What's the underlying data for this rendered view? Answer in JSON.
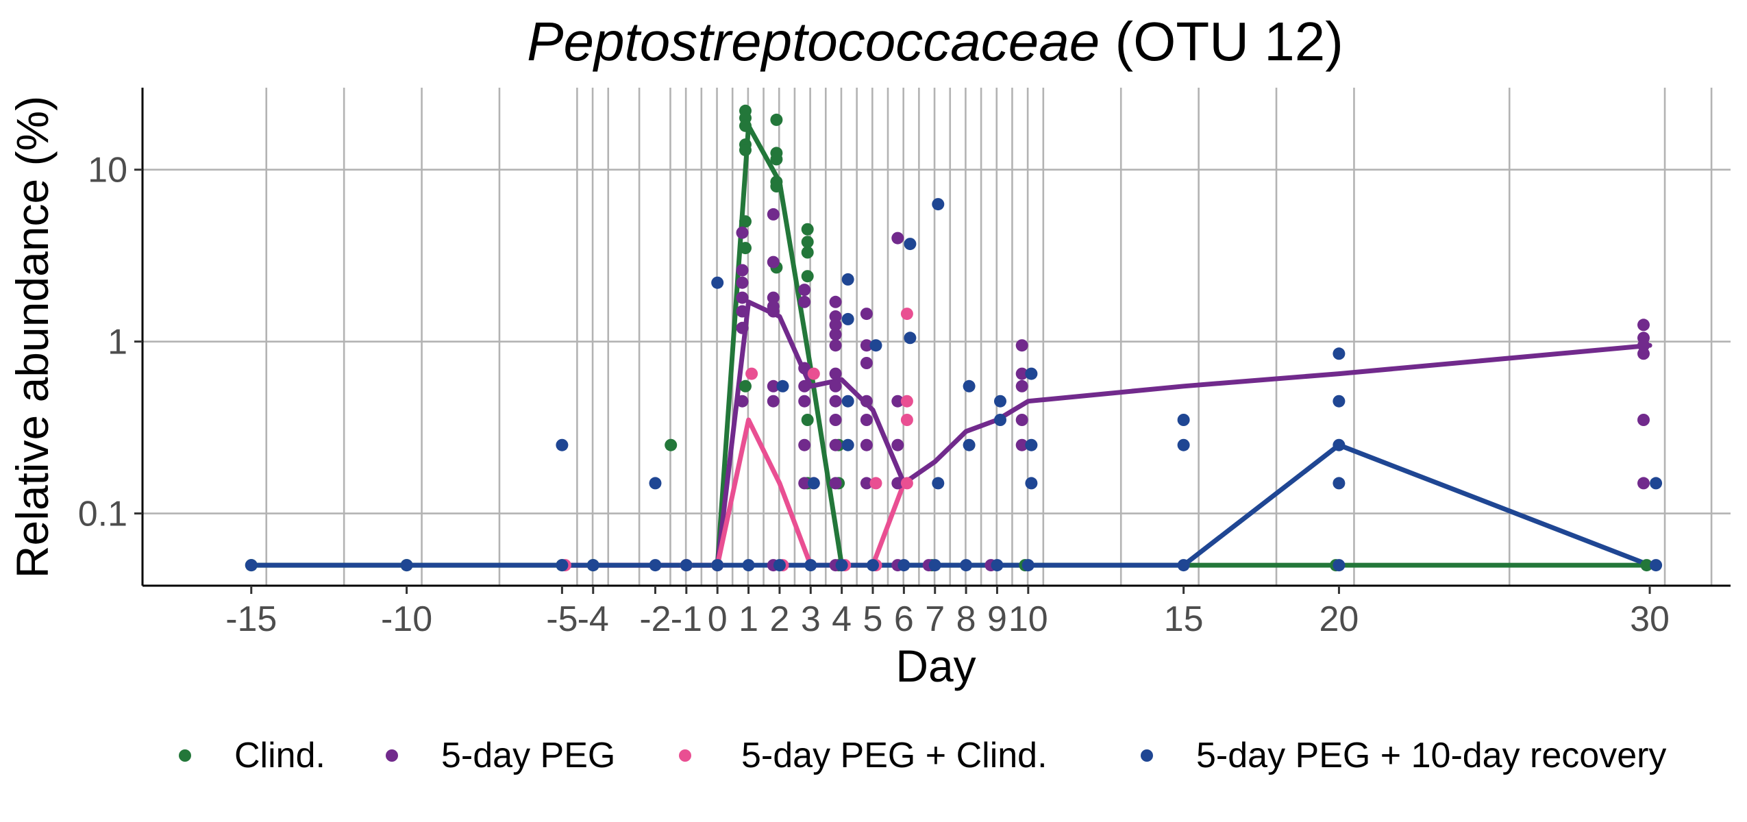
{
  "chart_data": {
    "type": "line",
    "title_main": "Peptostreptococcaceae",
    "title_rest": " (OTU 12)",
    "xlabel": "Day",
    "ylabel": "Relative abundance (%)",
    "y_scale": "log10",
    "ylim": [
      0.038,
      30
    ],
    "xlim": [
      -18.5,
      32.6
    ],
    "grid": "on",
    "legend_position": "bottom",
    "x_ticks": [
      {
        "value": -15,
        "label": "-15"
      },
      {
        "value": -10,
        "label": "-10"
      },
      {
        "value": -5,
        "label": "-5"
      },
      {
        "value": -4,
        "label": "-4"
      },
      {
        "value": -2,
        "label": "-2"
      },
      {
        "value": -1,
        "label": "-1"
      },
      {
        "value": 0,
        "label": "0"
      },
      {
        "value": 1,
        "label": "1"
      },
      {
        "value": 2,
        "label": "2"
      },
      {
        "value": 3,
        "label": "3"
      },
      {
        "value": 4,
        "label": "4"
      },
      {
        "value": 5,
        "label": "5"
      },
      {
        "value": 6,
        "label": "6"
      },
      {
        "value": 7,
        "label": "7"
      },
      {
        "value": 8,
        "label": "8"
      },
      {
        "value": 9,
        "label": "9"
      },
      {
        "value": 10,
        "label": "10"
      },
      {
        "value": 15,
        "label": "15"
      },
      {
        "value": 20,
        "label": "20"
      },
      {
        "value": 30,
        "label": "30"
      }
    ],
    "y_ticks": [
      {
        "value": 0.1,
        "label": "0.1"
      },
      {
        "value": 1,
        "label": "1"
      },
      {
        "value": 10,
        "label": "10"
      }
    ],
    "series": [
      {
        "name": "Clind.",
        "color": "#23773a",
        "line": [
          [
            -15,
            0.05
          ],
          [
            -10,
            0.05
          ],
          [
            -5,
            0.05
          ],
          [
            -1,
            0.05
          ],
          [
            0,
            0.05
          ],
          [
            1,
            18
          ],
          [
            2,
            8.5
          ],
          [
            3,
            0.7
          ],
          [
            4,
            0.05
          ],
          [
            10,
            0.05
          ],
          [
            15,
            0.05
          ],
          [
            20,
            0.05
          ],
          [
            30,
            0.05
          ]
        ],
        "points": [
          [
            -15,
            0.05
          ],
          [
            -10,
            0.05
          ],
          [
            -5,
            0.05
          ],
          [
            -4,
            0.05
          ],
          [
            -1,
            0.05
          ],
          [
            0,
            0.05
          ],
          [
            -1.5,
            0.25
          ],
          [
            0.9,
            22
          ],
          [
            0.9,
            20
          ],
          [
            0.9,
            18
          ],
          [
            0.9,
            14
          ],
          [
            0.9,
            13
          ],
          [
            0.9,
            5
          ],
          [
            0.9,
            3.5
          ],
          [
            0.9,
            0.55
          ],
          [
            1.9,
            19.5
          ],
          [
            1.9,
            12.5
          ],
          [
            1.9,
            11.5
          ],
          [
            1.9,
            8.5
          ],
          [
            1.9,
            8
          ],
          [
            1.9,
            2.7
          ],
          [
            2.9,
            4.5
          ],
          [
            2.9,
            3.8
          ],
          [
            2.9,
            3.3
          ],
          [
            2.9,
            2.4
          ],
          [
            2.9,
            0.35
          ],
          [
            2.9,
            0.15
          ],
          [
            3.9,
            0.25
          ],
          [
            3.9,
            0.15
          ],
          [
            3.9,
            0.05
          ],
          [
            6.9,
            0.05
          ],
          [
            9.9,
            0.05
          ],
          [
            19.9,
            0.05
          ],
          [
            29.9,
            0.05
          ]
        ]
      },
      {
        "name": "5-day PEG",
        "color": "#712a8c",
        "line": [
          [
            -5,
            0.05
          ],
          [
            -4,
            0.05
          ],
          [
            -2,
            0.05
          ],
          [
            -1,
            0.05
          ],
          [
            0,
            0.05
          ],
          [
            1,
            1.7
          ],
          [
            2,
            1.4
          ],
          [
            3,
            0.55
          ],
          [
            4,
            0.6
          ],
          [
            5,
            0.4
          ],
          [
            6,
            0.15
          ],
          [
            7,
            0.2
          ],
          [
            8,
            0.3
          ],
          [
            9,
            0.35
          ],
          [
            10,
            0.45
          ],
          [
            15,
            0.55
          ],
          [
            20,
            0.65
          ],
          [
            30,
            0.95
          ]
        ],
        "points": [
          [
            0.8,
            4.3
          ],
          [
            0.8,
            2.6
          ],
          [
            0.8,
            2.2
          ],
          [
            0.8,
            1.8
          ],
          [
            0.8,
            1.5
          ],
          [
            0.8,
            1.2
          ],
          [
            0.8,
            0.45
          ],
          [
            1.8,
            5.5
          ],
          [
            1.8,
            2.9
          ],
          [
            1.8,
            1.8
          ],
          [
            1.8,
            1.6
          ],
          [
            1.8,
            1.5
          ],
          [
            1.8,
            0.55
          ],
          [
            1.8,
            0.45
          ],
          [
            2.8,
            2.0
          ],
          [
            2.8,
            1.7
          ],
          [
            2.8,
            0.7
          ],
          [
            2.8,
            0.55
          ],
          [
            2.8,
            0.45
          ],
          [
            2.8,
            0.25
          ],
          [
            2.8,
            0.15
          ],
          [
            3.8,
            1.7
          ],
          [
            3.8,
            1.4
          ],
          [
            3.8,
            1.25
          ],
          [
            3.8,
            1.1
          ],
          [
            3.8,
            0.95
          ],
          [
            3.8,
            0.65
          ],
          [
            3.8,
            0.55
          ],
          [
            3.8,
            0.45
          ],
          [
            3.8,
            0.35
          ],
          [
            3.8,
            0.25
          ],
          [
            3.8,
            0.15
          ],
          [
            4.8,
            1.45
          ],
          [
            4.8,
            0.95
          ],
          [
            4.8,
            0.75
          ],
          [
            4.8,
            0.45
          ],
          [
            4.8,
            0.35
          ],
          [
            4.8,
            0.25
          ],
          [
            4.8,
            0.15
          ],
          [
            5.8,
            4.0
          ],
          [
            5.8,
            0.45
          ],
          [
            5.8,
            0.25
          ],
          [
            5.8,
            0.15
          ],
          [
            9.8,
            0.95
          ],
          [
            9.8,
            0.65
          ],
          [
            9.8,
            0.55
          ],
          [
            9.8,
            0.35
          ],
          [
            9.8,
            0.25
          ],
          [
            29.8,
            1.25
          ],
          [
            29.8,
            1.05
          ],
          [
            29.8,
            0.95
          ],
          [
            29.8,
            0.85
          ],
          [
            29.8,
            0.35
          ],
          [
            29.8,
            0.15
          ],
          [
            1.8,
            0.05
          ],
          [
            3.8,
            0.05
          ],
          [
            5.8,
            0.05
          ],
          [
            6.8,
            0.05
          ],
          [
            8.8,
            0.05
          ]
        ]
      },
      {
        "name": "5-day PEG + Clind.",
        "color": "#e94f92",
        "line": [
          [
            -5,
            0.05
          ],
          [
            -4,
            0.05
          ],
          [
            -2,
            0.05
          ],
          [
            -1,
            0.05
          ],
          [
            0,
            0.05
          ],
          [
            1,
            0.35
          ],
          [
            2,
            0.15
          ],
          [
            3,
            0.05
          ],
          [
            4,
            0.05
          ],
          [
            5,
            0.05
          ],
          [
            6,
            0.15
          ]
        ],
        "points": [
          [
            1.1,
            0.65
          ],
          [
            3.1,
            0.65
          ],
          [
            3.1,
            0.15
          ],
          [
            5.1,
            0.15
          ],
          [
            6.1,
            1.45
          ],
          [
            6.1,
            0.45
          ],
          [
            6.1,
            0.35
          ],
          [
            6.1,
            0.15
          ],
          [
            -4.9,
            0.05
          ],
          [
            -1,
            0.05
          ],
          [
            0,
            0.05
          ],
          [
            2.1,
            0.05
          ],
          [
            4.1,
            0.05
          ],
          [
            5.1,
            0.05
          ]
        ]
      },
      {
        "name": "5-day PEG + 10-day recovery",
        "color": "#1f4693",
        "line": [
          [
            -15,
            0.05
          ],
          [
            -10,
            0.05
          ],
          [
            -5,
            0.05
          ],
          [
            -4,
            0.05
          ],
          [
            -2,
            0.05
          ],
          [
            -1,
            0.05
          ],
          [
            0,
            0.05
          ],
          [
            1,
            0.05
          ],
          [
            2,
            0.05
          ],
          [
            3,
            0.05
          ],
          [
            4,
            0.05
          ],
          [
            5,
            0.05
          ],
          [
            6,
            0.05
          ],
          [
            7,
            0.05
          ],
          [
            8,
            0.05
          ],
          [
            9,
            0.05
          ],
          [
            10,
            0.05
          ],
          [
            15,
            0.05
          ],
          [
            20,
            0.25
          ],
          [
            30,
            0.05
          ]
        ],
        "points": [
          [
            -5,
            0.25
          ],
          [
            -2,
            0.15
          ],
          [
            0,
            2.2
          ],
          [
            2.1,
            0.55
          ],
          [
            3.1,
            0.15
          ],
          [
            4.2,
            2.3
          ],
          [
            4.2,
            1.35
          ],
          [
            4.2,
            0.45
          ],
          [
            4.2,
            0.25
          ],
          [
            5.1,
            0.95
          ],
          [
            6.2,
            3.7
          ],
          [
            6.2,
            1.05
          ],
          [
            7.1,
            6.3
          ],
          [
            7.1,
            0.15
          ],
          [
            8.1,
            0.55
          ],
          [
            8.1,
            0.25
          ],
          [
            9.1,
            0.45
          ],
          [
            9.1,
            0.35
          ],
          [
            10.1,
            0.65
          ],
          [
            10.1,
            0.25
          ],
          [
            10.1,
            0.15
          ],
          [
            15,
            0.35
          ],
          [
            15,
            0.25
          ],
          [
            20,
            0.85
          ],
          [
            20,
            0.45
          ],
          [
            20,
            0.25
          ],
          [
            20,
            0.15
          ],
          [
            30.2,
            0.15
          ],
          [
            -15,
            0.05
          ],
          [
            -10,
            0.05
          ],
          [
            -5,
            0.05
          ],
          [
            -4,
            0.05
          ],
          [
            -2,
            0.05
          ],
          [
            -1,
            0.05
          ],
          [
            0,
            0.05
          ],
          [
            1,
            0.05
          ],
          [
            2,
            0.05
          ],
          [
            3,
            0.05
          ],
          [
            4,
            0.05
          ],
          [
            5,
            0.05
          ],
          [
            6,
            0.05
          ],
          [
            7,
            0.05
          ],
          [
            8,
            0.05
          ],
          [
            9,
            0.05
          ],
          [
            10,
            0.05
          ],
          [
            15,
            0.05
          ],
          [
            20,
            0.05
          ],
          [
            30.2,
            0.05
          ]
        ]
      }
    ]
  }
}
